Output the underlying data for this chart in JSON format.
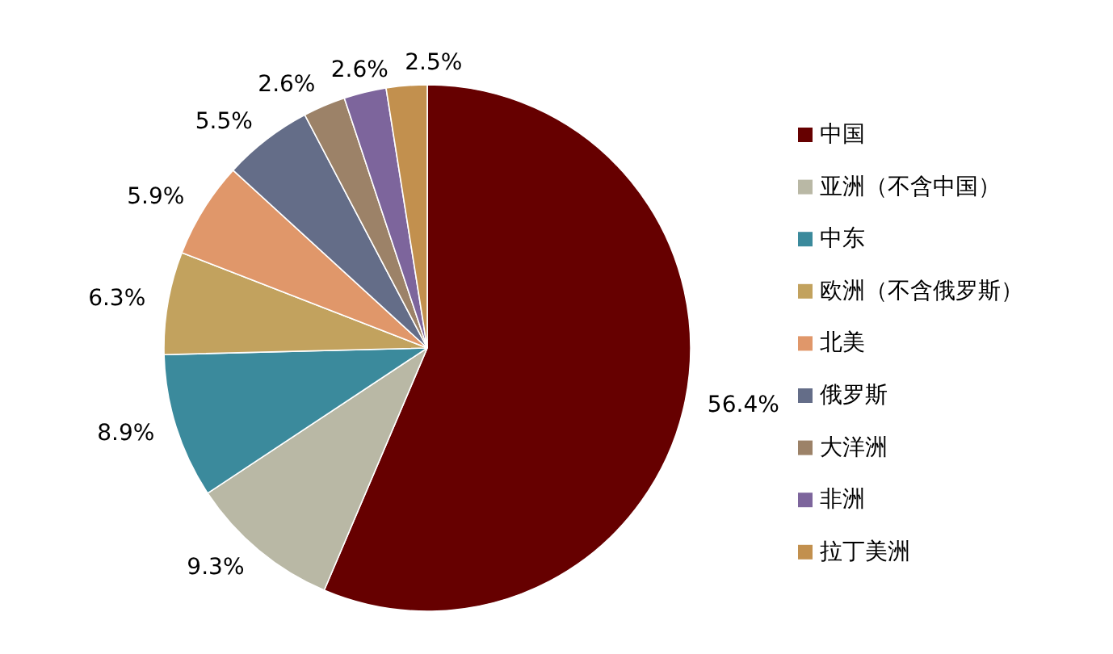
{
  "chart_data": {
    "type": "pie",
    "categories": [
      "中国",
      "亚洲（不含中国）",
      "中东",
      "欧洲（不含俄罗斯）",
      "北美",
      "俄罗斯",
      "大洋洲",
      "非洲",
      "拉丁美洲"
    ],
    "values": [
      56.4,
      9.3,
      8.9,
      6.3,
      5.9,
      5.5,
      2.6,
      2.6,
      2.5
    ],
    "value_labels": [
      "56.4%",
      "9.3%",
      "8.9%",
      "6.3%",
      "5.9%",
      "5.5%",
      "2.6%",
      "2.6%",
      "2.5%"
    ],
    "colors": [
      "#660000",
      "#b9b8a5",
      "#3b8a9c",
      "#c2a25e",
      "#e0976a",
      "#646d88",
      "#9c8268",
      "#7d659c",
      "#c2904e"
    ],
    "legend": "right"
  }
}
